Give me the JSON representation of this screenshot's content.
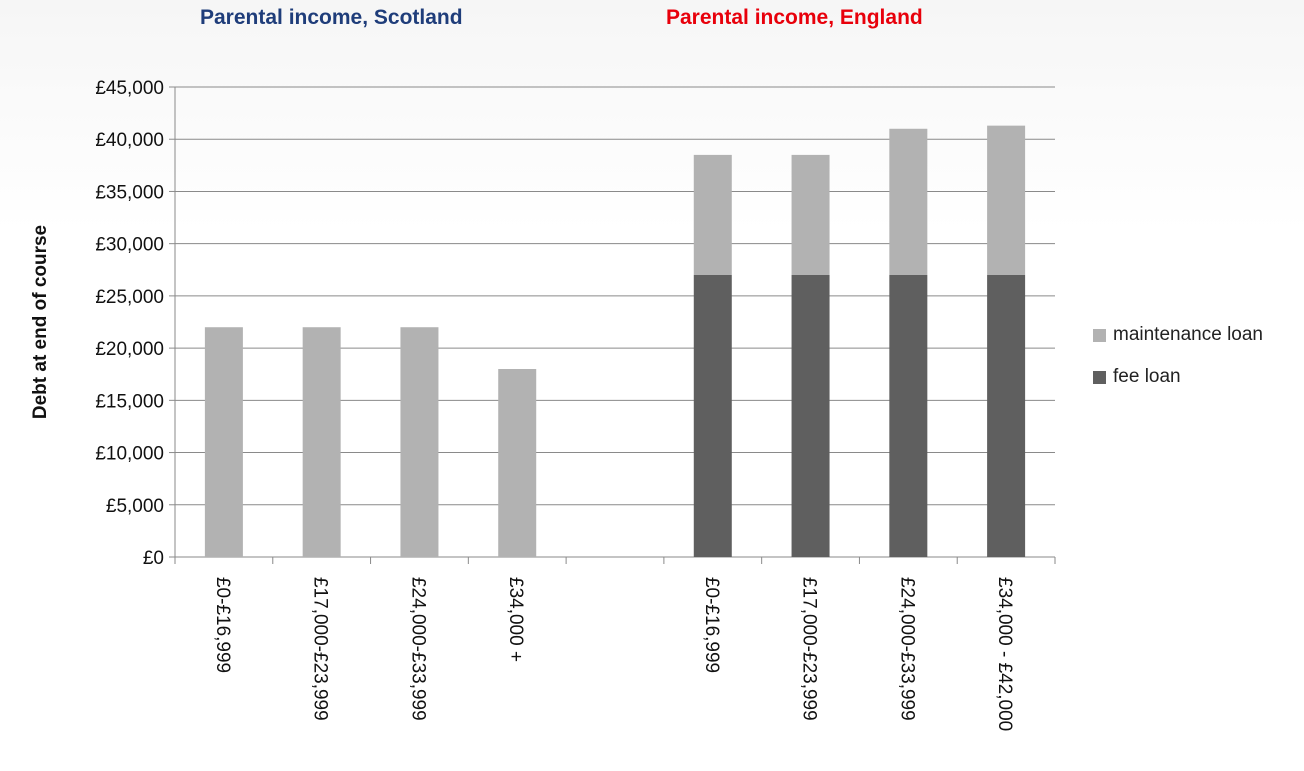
{
  "chart_data": {
    "type": "bar",
    "stacked": true,
    "group_titles": [
      {
        "label": "Parental income, Scotland",
        "color": "#1f3d7a"
      },
      {
        "label": "Parental income, England",
        "color": "#e8000b"
      }
    ],
    "ylabel": "Debt at end of course",
    "ylim": [
      0,
      45000
    ],
    "yticks": [
      "£0",
      "£5,000",
      "£10,000",
      "£15,000",
      "£20,000",
      "£25,000",
      "£30,000",
      "£35,000",
      "£40,000",
      "£45,000"
    ],
    "grid": true,
    "legend_position": "right",
    "categories": [
      "£0-£16,999",
      "£17,000-£23,999",
      "£24,000-£33,999",
      "£34,000 +",
      "",
      "£0-£16,999",
      "£17,000-£23,999",
      "£24,000-£33,999",
      "£34,000 - £42,000"
    ],
    "series": [
      {
        "name": "fee loan",
        "color": "#5f5f5f",
        "values": [
          0,
          0,
          0,
          0,
          0,
          27000,
          27000,
          27000,
          27000
        ]
      },
      {
        "name": "maintenance loan",
        "color": "#b2b2b2",
        "values": [
          22000,
          22000,
          22000,
          18000,
          0,
          11500,
          11500,
          14000,
          14300
        ]
      }
    ],
    "legend": [
      "maintenance loan",
      "fee loan"
    ]
  }
}
